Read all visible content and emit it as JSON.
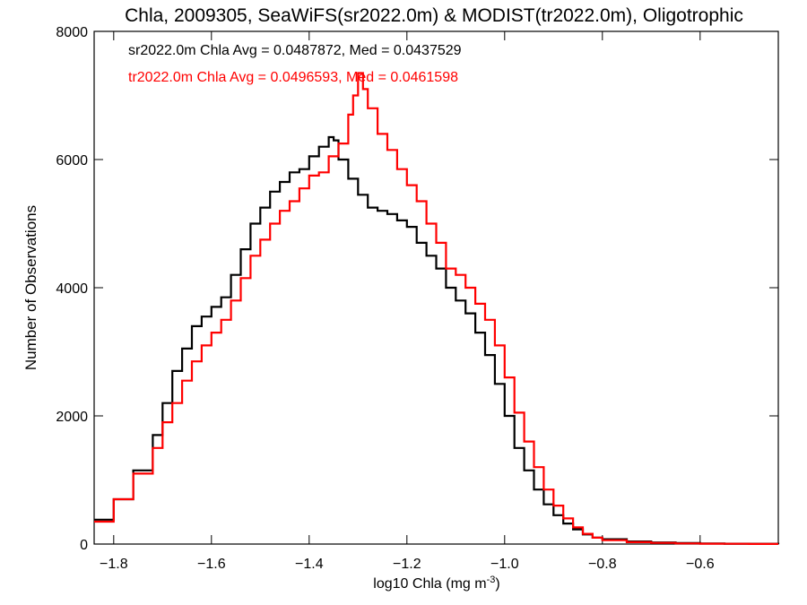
{
  "chart_data": {
    "type": "line",
    "title": "Chla, 2009305, SeaWiFS(sr2022.0m) & MODIST(tr2022.0m), Oligotrophic",
    "xlabel_main": "log10 Chla (mg m",
    "xlabel_sup": "-3",
    "xlabel_close": ")",
    "ylabel": "Number of Observations",
    "xlim": [
      -1.84,
      -0.44
    ],
    "ylim": [
      0,
      8000
    ],
    "x_ticks": [
      -1.8,
      -1.6,
      -1.4,
      -1.2,
      -1.0,
      -0.8,
      -0.6
    ],
    "x_tick_labels": [
      "−1.8",
      "−1.6",
      "−1.4",
      "−1.2",
      "−1.0",
      "−0.8",
      "−0.6"
    ],
    "y_ticks": [
      0,
      2000,
      4000,
      6000,
      8000
    ],
    "y_tick_labels": [
      "0",
      "2000",
      "4000",
      "6000",
      "8000"
    ],
    "annotations": [
      {
        "text": "sr2022.0m Chla Avg = 0.0487872, Med = 0.0437529",
        "color": "#000000"
      },
      {
        "text": "tr2022.0m Chla Avg = 0.0496593, Med = 0.0461598",
        "color": "#ff0000"
      }
    ],
    "series": [
      {
        "color": "#000000",
        "x": [
          -1.84,
          -1.8,
          -1.76,
          -1.72,
          -1.7,
          -1.68,
          -1.66,
          -1.64,
          -1.62,
          -1.6,
          -1.58,
          -1.56,
          -1.54,
          -1.52,
          -1.5,
          -1.48,
          -1.46,
          -1.44,
          -1.42,
          -1.4,
          -1.38,
          -1.36,
          -1.35,
          -1.34,
          -1.32,
          -1.3,
          -1.28,
          -1.26,
          -1.24,
          -1.22,
          -1.2,
          -1.18,
          -1.16,
          -1.14,
          -1.12,
          -1.1,
          -1.08,
          -1.06,
          -1.04,
          -1.02,
          -1.0,
          -0.98,
          -0.96,
          -0.94,
          -0.92,
          -0.9,
          -0.88,
          -0.86,
          -0.84,
          -0.82,
          -0.8,
          -0.75,
          -0.7,
          -0.65,
          -0.6,
          -0.55,
          -0.5,
          -0.44
        ],
        "y": [
          380,
          700,
          1150,
          1700,
          2200,
          2700,
          3050,
          3400,
          3550,
          3700,
          3850,
          4200,
          4600,
          5000,
          5250,
          5500,
          5650,
          5800,
          5850,
          6050,
          6200,
          6350,
          6300,
          6000,
          5700,
          5450,
          5250,
          5200,
          5150,
          5050,
          4950,
          4700,
          4500,
          4300,
          4000,
          3800,
          3600,
          3300,
          2950,
          2500,
          2000,
          1500,
          1150,
          850,
          620,
          450,
          320,
          230,
          150,
          100,
          75,
          40,
          25,
          15,
          10,
          6,
          4,
          2
        ]
      },
      {
        "color": "#ff0000",
        "x": [
          -1.84,
          -1.8,
          -1.76,
          -1.72,
          -1.7,
          -1.68,
          -1.66,
          -1.64,
          -1.62,
          -1.6,
          -1.58,
          -1.56,
          -1.54,
          -1.52,
          -1.5,
          -1.48,
          -1.46,
          -1.44,
          -1.42,
          -1.4,
          -1.38,
          -1.36,
          -1.34,
          -1.32,
          -1.31,
          -1.3,
          -1.29,
          -1.28,
          -1.26,
          -1.24,
          -1.22,
          -1.2,
          -1.18,
          -1.16,
          -1.14,
          -1.12,
          -1.1,
          -1.08,
          -1.06,
          -1.04,
          -1.02,
          -1.0,
          -0.98,
          -0.96,
          -0.94,
          -0.92,
          -0.9,
          -0.88,
          -0.86,
          -0.84,
          -0.82,
          -0.8,
          -0.75,
          -0.7,
          -0.65,
          -0.6,
          -0.55,
          -0.5,
          -0.44
        ],
        "y": [
          350,
          700,
          1100,
          1500,
          1900,
          2200,
          2550,
          2850,
          3100,
          3300,
          3500,
          3800,
          4150,
          4500,
          4750,
          5000,
          5200,
          5350,
          5550,
          5750,
          5800,
          6050,
          6250,
          6700,
          7000,
          7350,
          7100,
          6800,
          6400,
          6150,
          5850,
          5600,
          5350,
          5000,
          4700,
          4300,
          4200,
          4000,
          3750,
          3500,
          3100,
          2600,
          2050,
          1600,
          1200,
          850,
          600,
          400,
          260,
          160,
          100,
          60,
          30,
          18,
          10,
          6,
          4,
          2,
          1
        ]
      }
    ]
  }
}
